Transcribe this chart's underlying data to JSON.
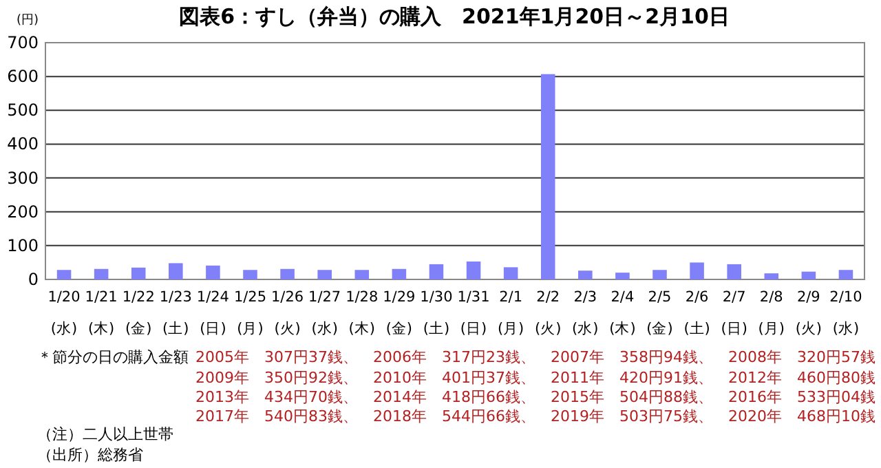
{
  "chart_data": {
    "type": "bar",
    "title": "図表6：すし（弁当）の購入　2021年1月20日～2月10日",
    "ylabel": "(円)",
    "categories": [
      "1/20\n(水)",
      "1/21\n(木)",
      "1/22\n(金)",
      "1/23\n(土)",
      "1/24\n(日)",
      "1/25\n(月)",
      "1/26\n(火)",
      "1/27\n(水)",
      "1/28\n(木)",
      "1/29\n(金)",
      "1/30\n(土)",
      "1/31\n(日)",
      "2/1\n(月)",
      "2/2\n(火)",
      "2/3\n(水)",
      "2/4\n(木)",
      "2/5\n(金)",
      "2/6\n(土)",
      "2/7\n(日)",
      "2/8\n(月)",
      "2/9\n(火)",
      "2/10\n(水)"
    ],
    "values": [
      28,
      31,
      35,
      48,
      41,
      28,
      31,
      28,
      28,
      31,
      45,
      53,
      36,
      607,
      26,
      20,
      28,
      50,
      45,
      18,
      23,
      28
    ],
    "color": "#8080f8",
    "ylim": [
      0,
      700
    ],
    "yticks": [
      0,
      100,
      200,
      300,
      400,
      500,
      600,
      700
    ],
    "grid": "y",
    "annotations": [
      "＊節分の日の購入金額",
      "2005年　307円37銭、　2006年　317円23銭、　2007年　358円94銭、　2008年　320円57銭",
      "2009年　350円92銭、　2010年　401円37銭、　2011年　420円91銭、　2012年　460円80銭",
      "2013年　434円70銭、　2014年　418円66銭、　2015年　504円88銭、　2016年　533円04銭",
      "2017年　540円83銭、　2018年　544円66銭、　2019年　503円75銭、　2020年　468円10銭",
      "（注）二人以上世帯",
      "（出所）総務省"
    ]
  }
}
